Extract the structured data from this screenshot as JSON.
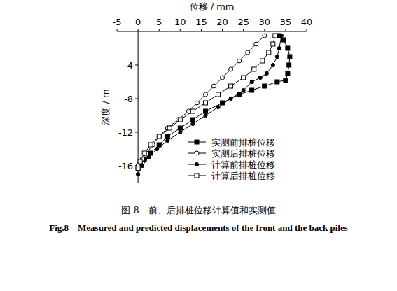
{
  "chart_data": {
    "type": "line",
    "title": "图 8　前、后排桩位移计算值和实测值",
    "subtitle": "Fig.8　Measured and predicted displacements of the front and the back piles",
    "x_label": "位移 / mm",
    "y_label": "深度 / m",
    "xlim": [
      -5,
      40
    ],
    "xticks": [
      -5,
      0,
      5,
      10,
      15,
      20,
      25,
      30,
      35,
      40
    ],
    "ylim": [
      -18,
      0
    ],
    "yticks": [
      -16,
      -12,
      -8,
      -4
    ],
    "grid": false,
    "legend": "lower right",
    "series": [
      {
        "name": "实测前排桩位移",
        "color": "#000000",
        "marker": "square",
        "x": [
          33.5,
          34.5,
          35.5,
          36,
          35.8,
          35.5,
          35,
          33,
          30,
          27,
          24,
          20,
          16,
          13,
          10,
          7,
          5,
          3,
          1.5,
          0.5,
          0
        ],
        "values": [
          -0.5,
          -1,
          -2,
          -3,
          -4,
          -5,
          -5.8,
          -6,
          -6.5,
          -7,
          -7.5,
          -8.5,
          -9.5,
          -10.5,
          -11.5,
          -12.5,
          -13.5,
          -14.5,
          -15.2,
          -15.8,
          -16.2
        ]
      },
      {
        "name": "实测后排桩位移",
        "color": "#000000",
        "marker": "circle-open",
        "x": [
          30,
          28,
          26,
          24,
          22,
          20,
          18,
          16,
          14,
          12,
          9.5,
          7,
          5,
          3.5,
          2,
          1,
          0
        ],
        "values": [
          -0.5,
          -1.5,
          -2.5,
          -3.5,
          -4.5,
          -5.5,
          -6.5,
          -7.5,
          -8.5,
          -9.5,
          -10.5,
          -11.5,
          -12.5,
          -13.5,
          -14.5,
          -15.2,
          -16
        ]
      },
      {
        "name": "计算前排桩位移",
        "color": "#000000",
        "marker": "circle",
        "x": [
          34,
          33.5,
          33,
          32,
          30.5,
          29,
          27,
          25,
          22,
          19,
          16,
          13,
          10,
          7,
          4.5,
          2.5,
          1,
          0
        ],
        "values": [
          -0.5,
          -2,
          -3,
          -4,
          -5,
          -5.5,
          -6,
          -7,
          -8,
          -9,
          -10,
          -11,
          -12,
          -13,
          -14,
          -15,
          -16,
          -17
        ]
      },
      {
        "name": "计算后排桩位移",
        "color": "#000000",
        "marker": "square-open",
        "x": [
          32.5,
          32,
          31,
          29.5,
          27.5,
          25,
          22,
          19,
          16,
          13,
          10,
          7.5,
          5,
          3,
          1.5,
          0.5,
          0
        ],
        "values": [
          -0.5,
          -1.5,
          -2.5,
          -3.5,
          -4.5,
          -5.5,
          -6.5,
          -7.5,
          -8.5,
          -9.5,
          -10.5,
          -11.5,
          -12.5,
          -13.5,
          -14.5,
          -15.5,
          -16.3
        ]
      }
    ]
  }
}
